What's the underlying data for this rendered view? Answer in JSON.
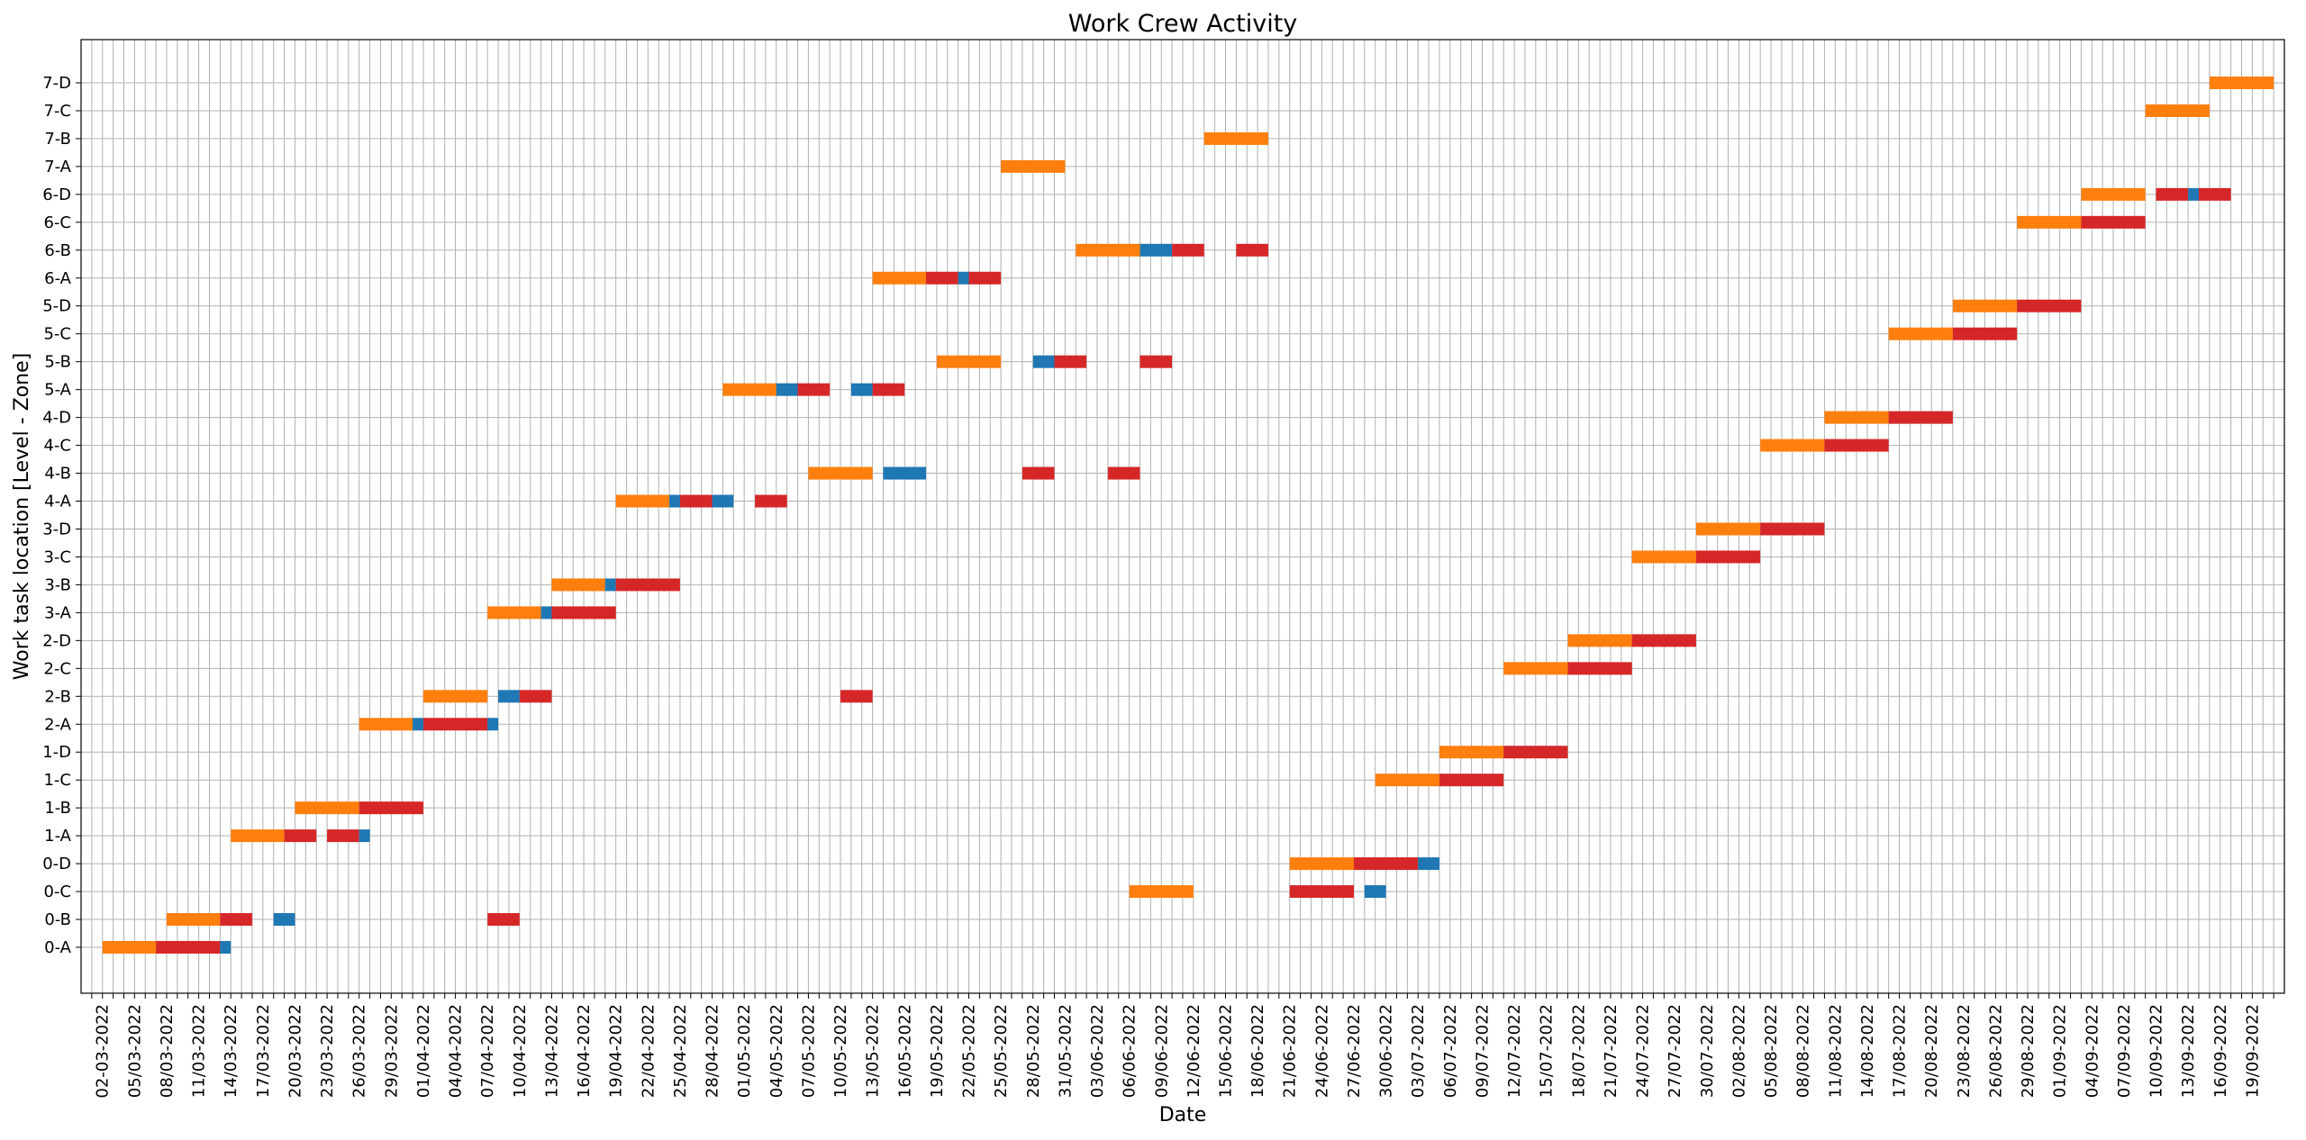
{
  "chart_data": {
    "type": "gantt",
    "title": "Work Crew Activity",
    "xlabel": "Date",
    "ylabel": "Work task location [Level - Zone]",
    "grid": true,
    "x_axis": {
      "kind": "date",
      "range": [
        "2022-02-28",
        "2022-09-22"
      ],
      "tick_labels": [
        "02-03-2022",
        "05/03-2022",
        "08/03-2022",
        "11/03-2022",
        "14/03-2022",
        "17/03-2022",
        "20/03-2022",
        "23/03-2022",
        "26/03-2022",
        "29/03-2022",
        "01/04-2022",
        "04/04-2022",
        "07/04-2022",
        "10/04-2022",
        "13/04-2022",
        "16/04-2022",
        "19/04-2022",
        "22/04-2022",
        "25/04-2022",
        "28/04-2022",
        "01/05-2022",
        "04/05-2022",
        "07/05-2022",
        "10/05-2022",
        "13/05-2022",
        "16/05-2022",
        "19/05-2022",
        "22/05-2022",
        "25/05-2022",
        "28/05-2022",
        "31/05-2022",
        "03/06-2022",
        "06/06-2022",
        "09/06-2022",
        "12/06-2022",
        "15/06-2022",
        "18/06-2022",
        "21/06-2022",
        "24/06-2022",
        "27/06-2022",
        "30/06-2022",
        "03/07-2022",
        "06/07-2022",
        "09/07-2022",
        "12/07-2022",
        "15/07-2022",
        "18/07-2022",
        "21/07-2022",
        "24/07-2022",
        "27/07-2022",
        "30/07-2022",
        "02/08-2022",
        "05/08-2022",
        "08/08-2022",
        "11/08-2022",
        "14/08-2022",
        "17/08-2022",
        "20/08-2022",
        "23/08-2022",
        "26/08-2022",
        "29/08-2022",
        "01/09-2022",
        "04/09-2022",
        "07/09-2022",
        "10/09-2022",
        "13/09-2022",
        "16/09-2022",
        "19/09-2022"
      ]
    },
    "categories": [
      "0-A",
      "0-B",
      "0-C",
      "0-D",
      "1-A",
      "1-B",
      "1-C",
      "1-D",
      "2-A",
      "2-B",
      "2-C",
      "2-D",
      "3-A",
      "3-B",
      "3-C",
      "3-D",
      "4-A",
      "4-B",
      "4-C",
      "4-D",
      "5-A",
      "5-B",
      "5-C",
      "5-D",
      "6-A",
      "6-B",
      "6-C",
      "6-D",
      "7-A",
      "7-B",
      "7-C",
      "7-D"
    ],
    "colors": {
      "orange": "#ff7f0e",
      "red": "#d62728",
      "blue": "#1f77b4"
    },
    "bars": [
      {
        "loc": "0-A",
        "start": "2022-03-02",
        "end": "2022-03-07",
        "color": "orange"
      },
      {
        "loc": "0-A",
        "start": "2022-03-07",
        "end": "2022-03-13",
        "color": "red"
      },
      {
        "loc": "0-A",
        "start": "2022-03-13",
        "end": "2022-03-14",
        "color": "blue"
      },
      {
        "loc": "0-B",
        "start": "2022-03-08",
        "end": "2022-03-13",
        "color": "orange"
      },
      {
        "loc": "0-B",
        "start": "2022-03-13",
        "end": "2022-03-16",
        "color": "red"
      },
      {
        "loc": "0-B",
        "start": "2022-03-18",
        "end": "2022-03-20",
        "color": "blue"
      },
      {
        "loc": "0-B",
        "start": "2022-04-07",
        "end": "2022-04-10",
        "color": "red"
      },
      {
        "loc": "0-C",
        "start": "2022-06-06",
        "end": "2022-06-12",
        "color": "orange"
      },
      {
        "loc": "0-C",
        "start": "2022-06-21",
        "end": "2022-06-27",
        "color": "red"
      },
      {
        "loc": "0-C",
        "start": "2022-06-28",
        "end": "2022-06-30",
        "color": "blue"
      },
      {
        "loc": "0-D",
        "start": "2022-06-21",
        "end": "2022-06-27",
        "color": "orange"
      },
      {
        "loc": "0-D",
        "start": "2022-06-27",
        "end": "2022-07-03",
        "color": "red"
      },
      {
        "loc": "0-D",
        "start": "2022-07-03",
        "end": "2022-07-05",
        "color": "blue"
      },
      {
        "loc": "1-A",
        "start": "2022-03-14",
        "end": "2022-03-19",
        "color": "orange"
      },
      {
        "loc": "1-A",
        "start": "2022-03-19",
        "end": "2022-03-22",
        "color": "red"
      },
      {
        "loc": "1-A",
        "start": "2022-03-23",
        "end": "2022-03-26",
        "color": "red"
      },
      {
        "loc": "1-A",
        "start": "2022-03-26",
        "end": "2022-03-27",
        "color": "blue"
      },
      {
        "loc": "1-B",
        "start": "2022-03-20",
        "end": "2022-03-26",
        "color": "orange"
      },
      {
        "loc": "1-B",
        "start": "2022-03-26",
        "end": "2022-04-01",
        "color": "red"
      },
      {
        "loc": "1-C",
        "start": "2022-06-29",
        "end": "2022-07-05",
        "color": "orange"
      },
      {
        "loc": "1-C",
        "start": "2022-07-05",
        "end": "2022-07-11",
        "color": "red"
      },
      {
        "loc": "1-D",
        "start": "2022-07-05",
        "end": "2022-07-11",
        "color": "orange"
      },
      {
        "loc": "1-D",
        "start": "2022-07-11",
        "end": "2022-07-17",
        "color": "red"
      },
      {
        "loc": "2-A",
        "start": "2022-03-26",
        "end": "2022-03-31",
        "color": "orange"
      },
      {
        "loc": "2-A",
        "start": "2022-03-31",
        "end": "2022-04-01",
        "color": "blue"
      },
      {
        "loc": "2-A",
        "start": "2022-04-01",
        "end": "2022-04-07",
        "color": "red"
      },
      {
        "loc": "2-A",
        "start": "2022-04-07",
        "end": "2022-04-08",
        "color": "blue"
      },
      {
        "loc": "2-B",
        "start": "2022-04-01",
        "end": "2022-04-07",
        "color": "orange"
      },
      {
        "loc": "2-B",
        "start": "2022-04-08",
        "end": "2022-04-10",
        "color": "blue"
      },
      {
        "loc": "2-B",
        "start": "2022-04-10",
        "end": "2022-04-13",
        "color": "red"
      },
      {
        "loc": "2-B",
        "start": "2022-05-10",
        "end": "2022-05-13",
        "color": "red"
      },
      {
        "loc": "2-C",
        "start": "2022-07-11",
        "end": "2022-07-17",
        "color": "orange"
      },
      {
        "loc": "2-C",
        "start": "2022-07-17",
        "end": "2022-07-23",
        "color": "red"
      },
      {
        "loc": "2-D",
        "start": "2022-07-17",
        "end": "2022-07-23",
        "color": "orange"
      },
      {
        "loc": "2-D",
        "start": "2022-07-23",
        "end": "2022-07-29",
        "color": "red"
      },
      {
        "loc": "3-A",
        "start": "2022-04-07",
        "end": "2022-04-12",
        "color": "orange"
      },
      {
        "loc": "3-A",
        "start": "2022-04-12",
        "end": "2022-04-13",
        "color": "blue"
      },
      {
        "loc": "3-A",
        "start": "2022-04-13",
        "end": "2022-04-19",
        "color": "red"
      },
      {
        "loc": "3-B",
        "start": "2022-04-13",
        "end": "2022-04-18",
        "color": "orange"
      },
      {
        "loc": "3-B",
        "start": "2022-04-18",
        "end": "2022-04-19",
        "color": "blue"
      },
      {
        "loc": "3-B",
        "start": "2022-04-19",
        "end": "2022-04-25",
        "color": "red"
      },
      {
        "loc": "3-C",
        "start": "2022-07-23",
        "end": "2022-07-29",
        "color": "orange"
      },
      {
        "loc": "3-C",
        "start": "2022-07-29",
        "end": "2022-08-04",
        "color": "red"
      },
      {
        "loc": "3-D",
        "start": "2022-07-29",
        "end": "2022-08-04",
        "color": "orange"
      },
      {
        "loc": "3-D",
        "start": "2022-08-04",
        "end": "2022-08-10",
        "color": "red"
      },
      {
        "loc": "4-A",
        "start": "2022-04-19",
        "end": "2022-04-24",
        "color": "orange"
      },
      {
        "loc": "4-A",
        "start": "2022-04-24",
        "end": "2022-04-25",
        "color": "blue"
      },
      {
        "loc": "4-A",
        "start": "2022-04-25",
        "end": "2022-04-28",
        "color": "red"
      },
      {
        "loc": "4-A",
        "start": "2022-04-28",
        "end": "2022-04-30",
        "color": "blue"
      },
      {
        "loc": "4-A",
        "start": "2022-05-02",
        "end": "2022-05-05",
        "color": "red"
      },
      {
        "loc": "4-B",
        "start": "2022-05-07",
        "end": "2022-05-13",
        "color": "orange"
      },
      {
        "loc": "4-B",
        "start": "2022-05-14",
        "end": "2022-05-18",
        "color": "blue"
      },
      {
        "loc": "4-B",
        "start": "2022-05-27",
        "end": "2022-05-30",
        "color": "red"
      },
      {
        "loc": "4-B",
        "start": "2022-06-04",
        "end": "2022-06-07",
        "color": "red"
      },
      {
        "loc": "4-C",
        "start": "2022-08-04",
        "end": "2022-08-10",
        "color": "orange"
      },
      {
        "loc": "4-C",
        "start": "2022-08-10",
        "end": "2022-08-16",
        "color": "red"
      },
      {
        "loc": "4-D",
        "start": "2022-08-10",
        "end": "2022-08-16",
        "color": "orange"
      },
      {
        "loc": "4-D",
        "start": "2022-08-16",
        "end": "2022-08-22",
        "color": "red"
      },
      {
        "loc": "5-A",
        "start": "2022-04-29",
        "end": "2022-05-04",
        "color": "orange"
      },
      {
        "loc": "5-A",
        "start": "2022-05-04",
        "end": "2022-05-06",
        "color": "blue"
      },
      {
        "loc": "5-A",
        "start": "2022-05-06",
        "end": "2022-05-09",
        "color": "red"
      },
      {
        "loc": "5-A",
        "start": "2022-05-11",
        "end": "2022-05-13",
        "color": "blue"
      },
      {
        "loc": "5-A",
        "start": "2022-05-13",
        "end": "2022-05-16",
        "color": "red"
      },
      {
        "loc": "5-B",
        "start": "2022-05-19",
        "end": "2022-05-25",
        "color": "orange"
      },
      {
        "loc": "5-B",
        "start": "2022-05-28",
        "end": "2022-05-30",
        "color": "blue"
      },
      {
        "loc": "5-B",
        "start": "2022-05-30",
        "end": "2022-06-02",
        "color": "red"
      },
      {
        "loc": "5-B",
        "start": "2022-06-07",
        "end": "2022-06-10",
        "color": "red"
      },
      {
        "loc": "5-C",
        "start": "2022-08-16",
        "end": "2022-08-22",
        "color": "orange"
      },
      {
        "loc": "5-C",
        "start": "2022-08-22",
        "end": "2022-08-28",
        "color": "red"
      },
      {
        "loc": "5-D",
        "start": "2022-08-22",
        "end": "2022-08-28",
        "color": "orange"
      },
      {
        "loc": "5-D",
        "start": "2022-08-28",
        "end": "2022-09-03",
        "color": "red"
      },
      {
        "loc": "6-A",
        "start": "2022-05-13",
        "end": "2022-05-18",
        "color": "orange"
      },
      {
        "loc": "6-A",
        "start": "2022-05-18",
        "end": "2022-05-21",
        "color": "red"
      },
      {
        "loc": "6-A",
        "start": "2022-05-21",
        "end": "2022-05-22",
        "color": "blue"
      },
      {
        "loc": "6-A",
        "start": "2022-05-22",
        "end": "2022-05-25",
        "color": "red"
      },
      {
        "loc": "6-B",
        "start": "2022-06-01",
        "end": "2022-06-07",
        "color": "orange"
      },
      {
        "loc": "6-B",
        "start": "2022-06-07",
        "end": "2022-06-10",
        "color": "blue"
      },
      {
        "loc": "6-B",
        "start": "2022-06-10",
        "end": "2022-06-13",
        "color": "red"
      },
      {
        "loc": "6-B",
        "start": "2022-06-16",
        "end": "2022-06-19",
        "color": "red"
      },
      {
        "loc": "6-C",
        "start": "2022-08-28",
        "end": "2022-09-03",
        "color": "orange"
      },
      {
        "loc": "6-C",
        "start": "2022-09-03",
        "end": "2022-09-09",
        "color": "red"
      },
      {
        "loc": "6-D",
        "start": "2022-09-03",
        "end": "2022-09-09",
        "color": "orange"
      },
      {
        "loc": "6-D",
        "start": "2022-09-10",
        "end": "2022-09-13",
        "color": "red"
      },
      {
        "loc": "6-D",
        "start": "2022-09-13",
        "end": "2022-09-14",
        "color": "blue"
      },
      {
        "loc": "6-D",
        "start": "2022-09-14",
        "end": "2022-09-17",
        "color": "red"
      },
      {
        "loc": "7-A",
        "start": "2022-05-25",
        "end": "2022-05-31",
        "color": "orange"
      },
      {
        "loc": "7-B",
        "start": "2022-06-13",
        "end": "2022-06-19",
        "color": "orange"
      },
      {
        "loc": "7-C",
        "start": "2022-09-09",
        "end": "2022-09-15",
        "color": "orange"
      },
      {
        "loc": "7-D",
        "start": "2022-09-15",
        "end": "2022-09-21",
        "color": "orange"
      }
    ]
  }
}
